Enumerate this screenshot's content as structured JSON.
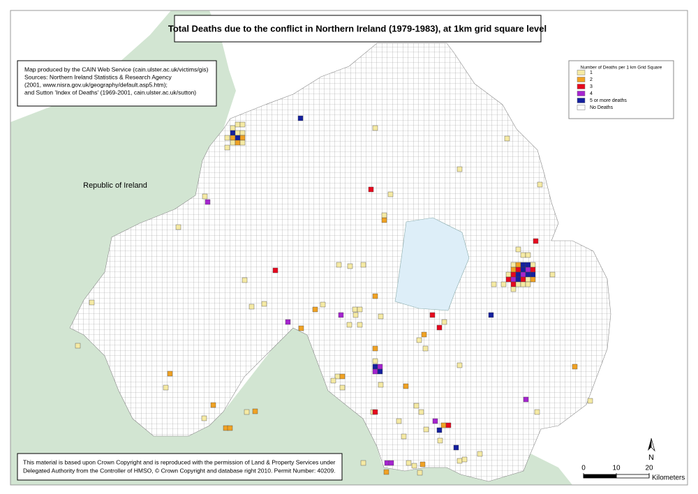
{
  "title": "Total Deaths due to the conflict in Northern Ireland (1979-1983), at 1km grid square level",
  "info": [
    "Map produced by the CAIN Web Service (cain.ulster.ac.uk/victims/gis)",
    "Sources: Northern Ireland Statistics & Research Agency",
    "(2001, www.nisra.gov.uk/geography/default.asp5.htm);",
    "and Sutton 'Index of Deaths' (1969-2001, cain.ulster.ac.uk/sutton)"
  ],
  "legend": {
    "title": "Number of Deaths per 1 km Grid Square",
    "items": [
      {
        "label": "1",
        "color": "#f5eaa4"
      },
      {
        "label": "2",
        "color": "#f0a224"
      },
      {
        "label": "3",
        "color": "#e6081e"
      },
      {
        "label": "4",
        "color": "#a524cf"
      },
      {
        "label": "5 or more deaths",
        "color": "#14209e"
      },
      {
        "label": "No Deaths",
        "color": "#ffffff"
      }
    ]
  },
  "place_label": "Republic of Ireland",
  "copyright": [
    "This material is based upon Crown Copyright and is reproduced with the permission of Land & Property Services under",
    "Delegated Authority from the Controller of HMSO, © Crown Copyright and database right 2010. Permit Number: 40209."
  ],
  "scale_bar": {
    "ticks": [
      0,
      10,
      20
    ],
    "unit": "Kilometers"
  },
  "north": "N"
}
